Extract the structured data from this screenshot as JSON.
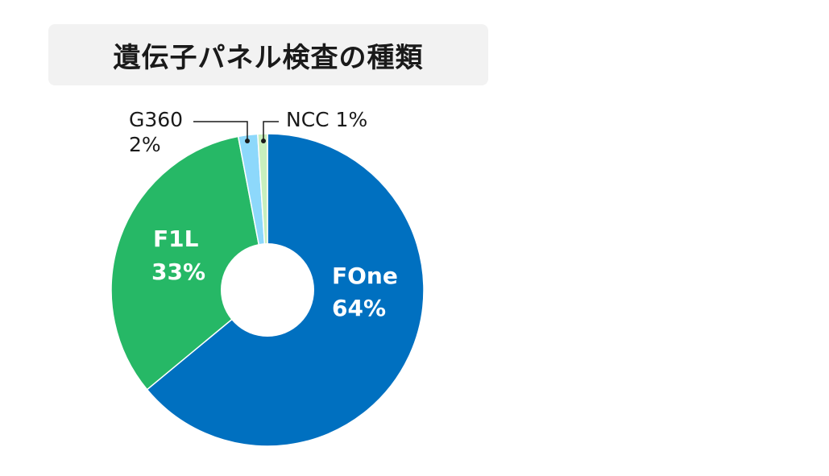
{
  "chart_data": {
    "type": "pie",
    "title": "遺伝子パネル検査の種類",
    "series": [
      {
        "name": "FOne",
        "value": 64,
        "value_label": "64%",
        "color": "#0070c0"
      },
      {
        "name": "F1L",
        "value": 33,
        "value_label": "33%",
        "color": "#26b866"
      },
      {
        "name": "G360",
        "value": 2,
        "value_label": "2%",
        "color": "#8dd8fb"
      },
      {
        "name": "NCC",
        "value": 1,
        "value_label": "1%",
        "color": "#c8efbd"
      }
    ],
    "labels": {
      "ncc_callout": "NCC 1%"
    }
  }
}
